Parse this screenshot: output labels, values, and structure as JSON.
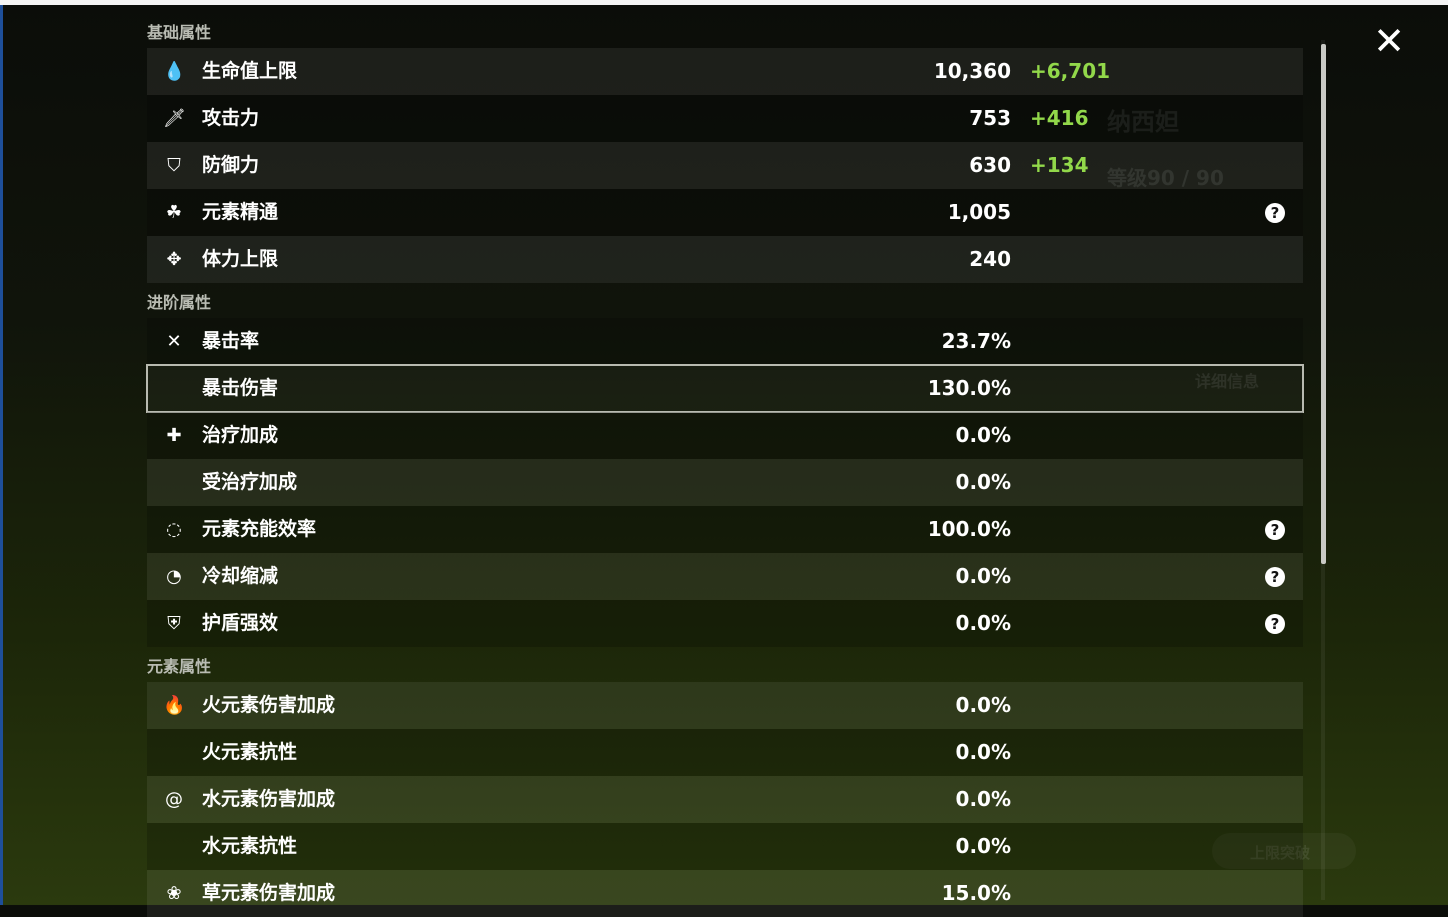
{
  "background": {
    "character_name": "纳西妲",
    "level": "等级90 / 90",
    "details_button": "详细信息",
    "ascend_button": "上限突破"
  },
  "colors": {
    "bonus_green": "#92d84a",
    "accent_border": "#b8bab0"
  },
  "close_icon": "close-icon",
  "sections": [
    {
      "title": "基础属性",
      "rows": [
        {
          "icon": "hp-drop-icon",
          "glyph": "💧",
          "label": "生命值上限",
          "value": "10,360",
          "bonus": "+6,701",
          "help": false
        },
        {
          "icon": "sword-icon",
          "glyph": "🗡",
          "label": "攻击力",
          "value": "753",
          "bonus": "+416",
          "help": false
        },
        {
          "icon": "shield-icon",
          "glyph": "⛉",
          "label": "防御力",
          "value": "630",
          "bonus": "+134",
          "help": false
        },
        {
          "icon": "elemental-mastery-icon",
          "glyph": "☘",
          "label": "元素精通",
          "value": "1,005",
          "bonus": "",
          "help": true
        },
        {
          "icon": "stamina-icon",
          "glyph": "✥",
          "label": "体力上限",
          "value": "240",
          "bonus": "",
          "help": false
        }
      ]
    },
    {
      "title": "进阶属性",
      "rows": [
        {
          "icon": "crit-rate-icon",
          "glyph": "✕",
          "label": "暴击率",
          "value": "23.7%",
          "bonus": "",
          "help": false
        },
        {
          "icon": "crit-damage-icon",
          "glyph": "",
          "label": "暴击伤害",
          "value": "130.0%",
          "bonus": "",
          "help": false,
          "selected": true
        },
        {
          "icon": "healing-icon",
          "glyph": "✚",
          "label": "治疗加成",
          "value": "0.0%",
          "bonus": "",
          "help": false
        },
        {
          "icon": "",
          "glyph": "",
          "label": "受治疗加成",
          "value": "0.0%",
          "bonus": "",
          "help": false
        },
        {
          "icon": "energy-recharge-icon",
          "glyph": "◌",
          "label": "元素充能效率",
          "value": "100.0%",
          "bonus": "",
          "help": true
        },
        {
          "icon": "cooldown-icon",
          "glyph": "◔",
          "label": "冷却缩减",
          "value": "0.0%",
          "bonus": "",
          "help": true
        },
        {
          "icon": "shield-strength-icon",
          "glyph": "⛨",
          "label": "护盾强效",
          "value": "0.0%",
          "bonus": "",
          "help": true
        }
      ]
    },
    {
      "title": "元素属性",
      "rows": [
        {
          "icon": "pyro-icon",
          "glyph": "🔥",
          "label": "火元素伤害加成",
          "value": "0.0%",
          "bonus": "",
          "help": false
        },
        {
          "icon": "",
          "glyph": "",
          "label": "火元素抗性",
          "value": "0.0%",
          "bonus": "",
          "help": false
        },
        {
          "icon": "hydro-icon",
          "glyph": "@",
          "label": "水元素伤害加成",
          "value": "0.0%",
          "bonus": "",
          "help": false
        },
        {
          "icon": "",
          "glyph": "",
          "label": "水元素抗性",
          "value": "0.0%",
          "bonus": "",
          "help": false
        },
        {
          "icon": "dendro-icon",
          "glyph": "❀",
          "label": "草元素伤害加成",
          "value": "15.0%",
          "bonus": "",
          "help": false
        }
      ]
    }
  ],
  "help_glyph": "?",
  "close_glyph": "✕"
}
